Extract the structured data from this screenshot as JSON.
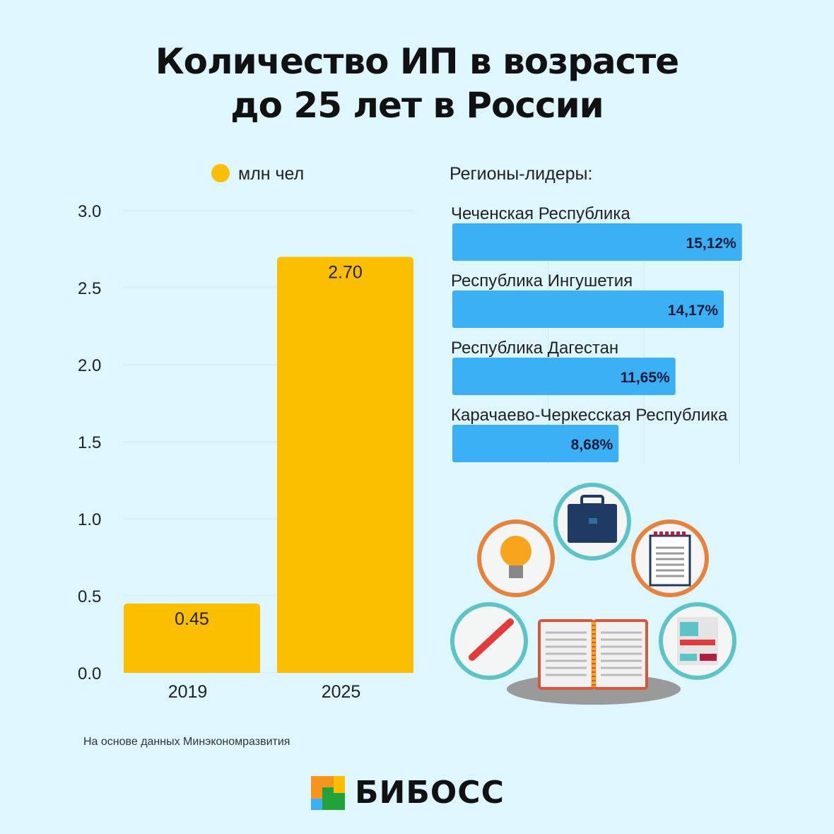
{
  "title_line1": "Количество ИП в возрасте",
  "title_line2": "до 25 лет в России",
  "source_note": "На основе данных Минэкономразвития",
  "logo_text": "БИБОСС",
  "colors": {
    "background": "#def6fd",
    "bar_yellow": "#fbbf00",
    "bar_blue": "#3bb0f5",
    "text": "#111111"
  },
  "chart_data": [
    {
      "type": "bar",
      "legend": "млн чел",
      "legend_placement": "top",
      "categories": [
        "2019",
        "2025"
      ],
      "values": [
        0.45,
        2.7
      ],
      "data_labels": [
        "0.45",
        "2.70"
      ],
      "ylim": [
        0,
        3.0
      ],
      "yticks": [
        "0.0",
        "0.5",
        "1.0",
        "1.5",
        "2.0",
        "2.5",
        "3.0"
      ],
      "grid": true
    },
    {
      "type": "bar",
      "orientation": "horizontal",
      "title": "Регионы-лидеры:",
      "categories": [
        "Чеченская Республика",
        "Республика Ингушетия",
        "Республика Дагестан",
        "Карачаево-Черкесская Республика"
      ],
      "values": [
        15.12,
        14.17,
        11.65,
        8.68
      ],
      "data_labels": [
        "15,12%",
        "14,17%",
        "11,65%",
        "8,68%"
      ],
      "xlim": [
        0,
        15
      ],
      "grid": true
    }
  ],
  "illustration_icons": [
    "briefcase-icon",
    "lightbulb-icon",
    "notepad-icon",
    "pencil-icon",
    "newspaper-icon",
    "open-book-icon"
  ]
}
